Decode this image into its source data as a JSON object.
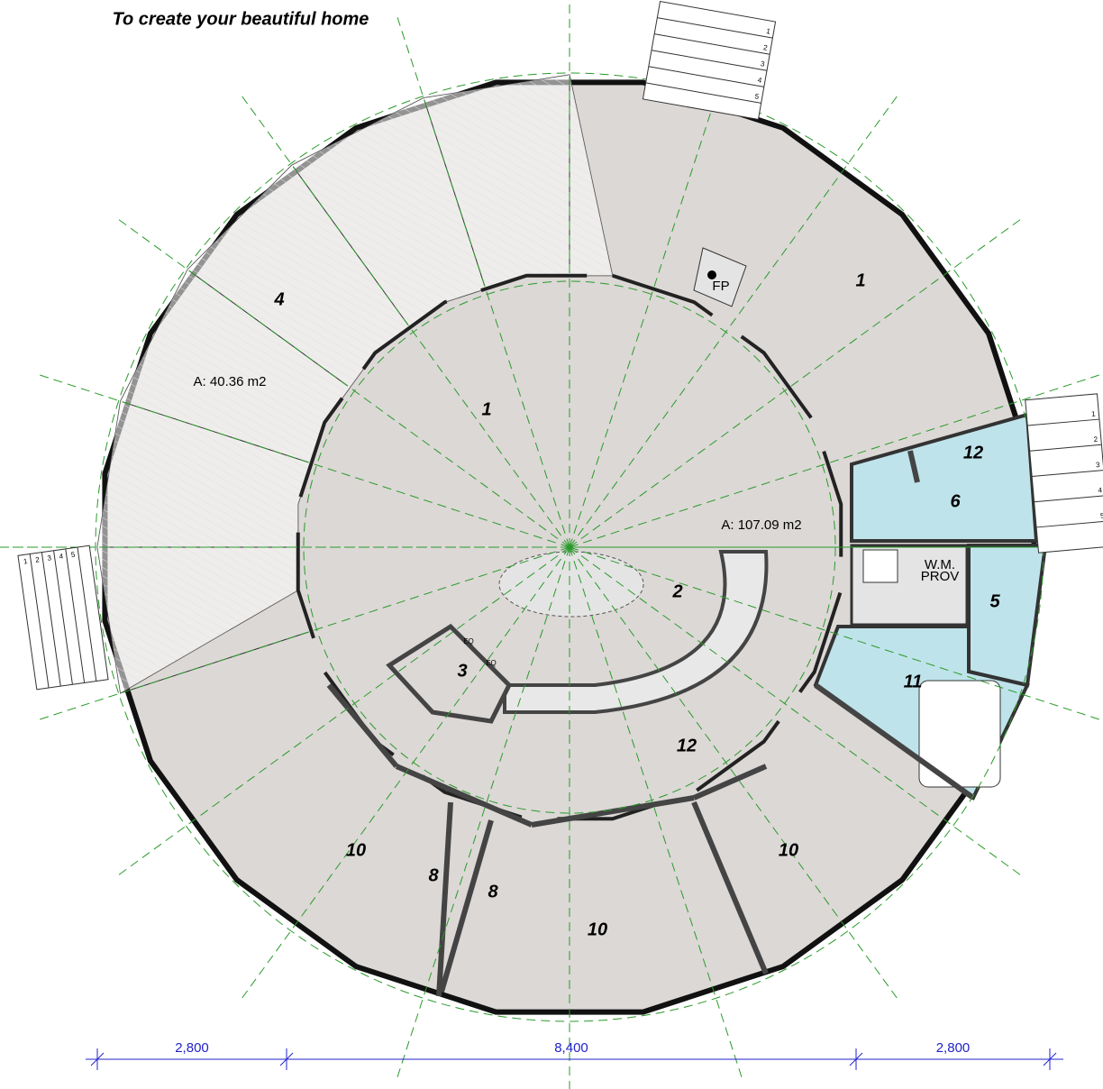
{
  "header": {
    "title": "To create your beautiful home"
  },
  "rooms": [
    {
      "label": "4"
    },
    {
      "label": "A: 40.36 m2"
    },
    {
      "label": "1"
    },
    {
      "label": "1"
    },
    {
      "label": "A: 107.09 m2"
    },
    {
      "label": "2"
    },
    {
      "label": "3"
    },
    {
      "label": "12"
    },
    {
      "label": "12"
    },
    {
      "label": "6"
    },
    {
      "label": "5"
    },
    {
      "label": "11"
    },
    {
      "label": "10"
    },
    {
      "label": "8"
    },
    {
      "label": "8"
    },
    {
      "label": "10"
    },
    {
      "label": "10"
    },
    {
      "label": "FP"
    },
    {
      "label": "W.M."
    },
    {
      "label": "PROV"
    },
    {
      "label": "EQ"
    },
    {
      "label": "EQ"
    }
  ],
  "stairs": [
    {
      "steps": [
        "1",
        "2",
        "3",
        "4",
        "5"
      ]
    },
    {
      "steps": [
        "1",
        "2",
        "3",
        "4",
        "5"
      ]
    },
    {
      "steps": [
        "1",
        "2",
        "3",
        "4",
        "5"
      ]
    }
  ],
  "dimensions": [
    {
      "label": "2,800"
    },
    {
      "label": "8,400"
    },
    {
      "label": "2,800"
    }
  ]
}
